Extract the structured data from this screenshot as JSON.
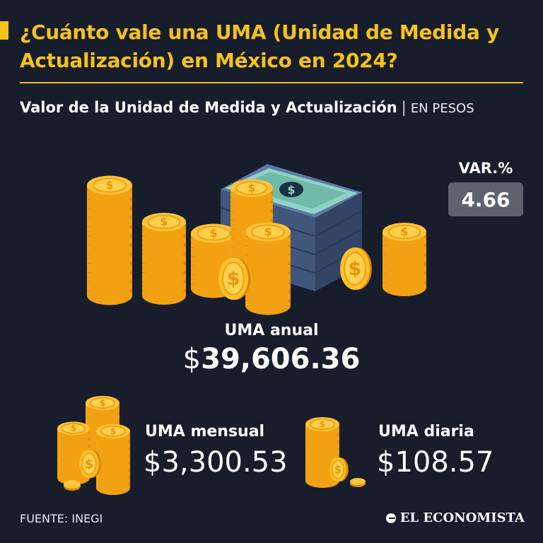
{
  "header": {
    "title": "¿Cuánto vale una UMA (Unidad de Medida y Actualización) en México en 2024?",
    "subtitle": "Valor de la Unidad de Medida y Actualización",
    "unit": "EN PESOS"
  },
  "variation": {
    "label": "VAR.%",
    "value": "4.66"
  },
  "annual": {
    "label": "UMA anual",
    "currency": "$",
    "value": "39,606.36"
  },
  "monthly": {
    "label": "UMA mensual",
    "value": "$3,300.53"
  },
  "daily": {
    "label": "UMA diaria",
    "value": "$108.57"
  },
  "footer": {
    "source": "FUENTE: INEGI",
    "brand": "EL ECONOMISTA"
  },
  "colors": {
    "background": "#171d2b",
    "accent": "#f5c21a",
    "coin": "#f9b516",
    "coin_dark": "#e58e0c",
    "banknote": "#4e6283",
    "variation_box": "#5d636d"
  },
  "icons": [
    "coin-stack-icon",
    "banknote-stack-icon",
    "coin-icon",
    "brand-logo-icon"
  ]
}
